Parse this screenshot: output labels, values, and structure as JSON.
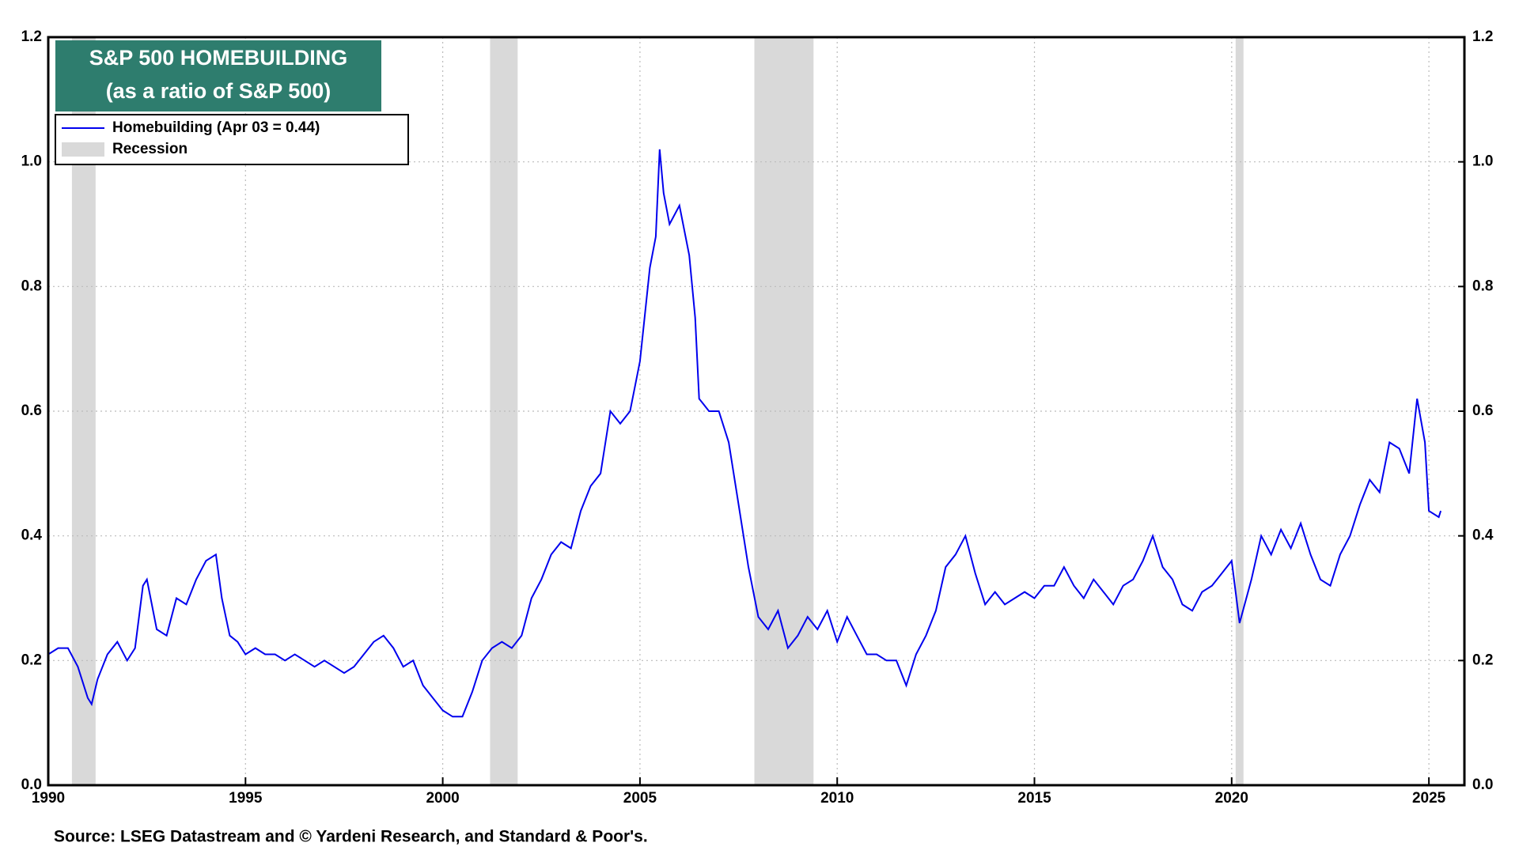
{
  "chart_data": {
    "type": "line",
    "title": "S&P 500 HOMEBUILDING",
    "subtitle": "(as a ratio of S&P 500)",
    "source": "Source: LSEG Datastream and © Yardeni Research, and Standard & Poor's.",
    "legend": "upper left",
    "grid": true,
    "xlim": [
      1990,
      2025.9
    ],
    "xticks": [
      1990,
      1995,
      2000,
      2005,
      2010,
      2015,
      2020,
      2025
    ],
    "ylim": [
      0,
      1.2
    ],
    "yticks": [
      {
        "value": 0,
        "label": "0.0"
      },
      0.2,
      0.4,
      0.6,
      0.8,
      {
        "value": 1,
        "label": "1.0"
      },
      1.2
    ],
    "y2lim": [
      0,
      1.2
    ],
    "y2ticks": [
      {
        "value": 0,
        "label": "0.0"
      },
      0.2,
      0.4,
      0.6,
      0.8,
      {
        "value": 1,
        "label": "1.0"
      },
      1.2
    ],
    "recession_name": "Recession",
    "recession_color": "#d9d9d9",
    "recessions": [
      [
        1990.6,
        1991.2
      ],
      [
        2001.2,
        2001.9
      ],
      [
        2007.9,
        2009.4
      ],
      [
        2020.1,
        2020.3
      ]
    ],
    "x": [
      1990.0,
      1990.25,
      1990.5,
      1990.75,
      1991.0,
      1991.1,
      1991.25,
      1991.5,
      1991.75,
      1992.0,
      1992.2,
      1992.4,
      1992.5,
      1992.75,
      1993.0,
      1993.25,
      1993.5,
      1993.75,
      1994.0,
      1994.25,
      1994.4,
      1994.6,
      1994.8,
      1995.0,
      1995.25,
      1995.5,
      1995.75,
      1996.0,
      1996.25,
      1996.5,
      1996.75,
      1997.0,
      1997.25,
      1997.5,
      1997.75,
      1998.0,
      1998.25,
      1998.5,
      1998.75,
      1999.0,
      1999.25,
      1999.5,
      1999.75,
      2000.0,
      2000.25,
      2000.5,
      2000.75,
      2001.0,
      2001.25,
      2001.5,
      2001.75,
      2002.0,
      2002.25,
      2002.5,
      2002.75,
      2003.0,
      2003.25,
      2003.5,
      2003.75,
      2004.0,
      2004.25,
      2004.5,
      2004.75,
      2005.0,
      2005.25,
      2005.4,
      2005.5,
      2005.6,
      2005.75,
      2006.0,
      2006.25,
      2006.4,
      2006.5,
      2006.75,
      2007.0,
      2007.25,
      2007.5,
      2007.75,
      2008.0,
      2008.25,
      2008.5,
      2008.75,
      2009.0,
      2009.25,
      2009.5,
      2009.75,
      2010.0,
      2010.25,
      2010.5,
      2010.75,
      2011.0,
      2011.25,
      2011.5,
      2011.75,
      2012.0,
      2012.25,
      2012.5,
      2012.75,
      2013.0,
      2013.25,
      2013.5,
      2013.75,
      2014.0,
      2014.25,
      2014.5,
      2014.75,
      2015.0,
      2015.25,
      2015.5,
      2015.75,
      2016.0,
      2016.25,
      2016.5,
      2016.75,
      2017.0,
      2017.25,
      2017.5,
      2017.75,
      2018.0,
      2018.25,
      2018.5,
      2018.75,
      2019.0,
      2019.25,
      2019.5,
      2019.75,
      2020.0,
      2020.2,
      2020.5,
      2020.75,
      2021.0,
      2021.25,
      2021.5,
      2021.75,
      2022.0,
      2022.25,
      2022.5,
      2022.75,
      2023.0,
      2023.25,
      2023.5,
      2023.75,
      2024.0,
      2024.25,
      2024.5,
      2024.7,
      2024.9,
      2025.0,
      2025.25,
      2025.3
    ],
    "series": [
      {
        "name": "Homebuilding (Apr 03 = 0.44)",
        "color": "#0000ee",
        "values": [
          0.21,
          0.22,
          0.22,
          0.19,
          0.14,
          0.13,
          0.17,
          0.21,
          0.23,
          0.2,
          0.22,
          0.32,
          0.33,
          0.25,
          0.24,
          0.3,
          0.29,
          0.33,
          0.36,
          0.37,
          0.3,
          0.24,
          0.23,
          0.21,
          0.22,
          0.21,
          0.21,
          0.2,
          0.21,
          0.2,
          0.19,
          0.2,
          0.19,
          0.18,
          0.19,
          0.21,
          0.23,
          0.24,
          0.22,
          0.19,
          0.2,
          0.16,
          0.14,
          0.12,
          0.11,
          0.11,
          0.15,
          0.2,
          0.22,
          0.23,
          0.22,
          0.24,
          0.3,
          0.33,
          0.37,
          0.39,
          0.38,
          0.44,
          0.48,
          0.5,
          0.6,
          0.58,
          0.6,
          0.68,
          0.83,
          0.88,
          1.02,
          0.95,
          0.9,
          0.93,
          0.85,
          0.75,
          0.62,
          0.6,
          0.6,
          0.55,
          0.45,
          0.35,
          0.27,
          0.25,
          0.28,
          0.22,
          0.24,
          0.27,
          0.25,
          0.28,
          0.23,
          0.27,
          0.24,
          0.21,
          0.21,
          0.2,
          0.2,
          0.16,
          0.21,
          0.24,
          0.28,
          0.35,
          0.37,
          0.4,
          0.34,
          0.29,
          0.31,
          0.29,
          0.3,
          0.31,
          0.3,
          0.32,
          0.32,
          0.35,
          0.32,
          0.3,
          0.33,
          0.31,
          0.29,
          0.32,
          0.33,
          0.36,
          0.4,
          0.35,
          0.33,
          0.29,
          0.28,
          0.31,
          0.32,
          0.34,
          0.36,
          0.26,
          0.33,
          0.4,
          0.37,
          0.41,
          0.38,
          0.42,
          0.37,
          0.33,
          0.32,
          0.37,
          0.4,
          0.45,
          0.49,
          0.47,
          0.55,
          0.54,
          0.5,
          0.62,
          0.55,
          0.44,
          0.43,
          0.44
        ]
      }
    ]
  }
}
